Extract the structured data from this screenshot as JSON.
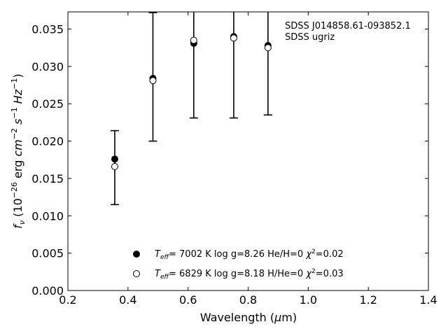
{
  "chart_data": {
    "type": "scatter",
    "title": "",
    "annotation_lines": [
      "SDSS J014858.61-093852.1",
      "SDSS ugriz"
    ],
    "xlabel": "Wavelength (μm)",
    "ylabel": "f_ν (10^-26 erg cm^-2 s^-1 Hz^-1)",
    "xlim": [
      0.2,
      1.4
    ],
    "ylim": [
      0.0,
      0.0373
    ],
    "xticks": [
      0.2,
      0.4,
      0.6,
      0.8,
      1.0,
      1.2,
      1.4
    ],
    "xtick_labels": [
      "0.2",
      "0.4",
      "0.6",
      "0.8",
      "1.0",
      "1.2",
      "1.4"
    ],
    "yticks": [
      0.0,
      0.005,
      0.01,
      0.015,
      0.02,
      0.025,
      0.03,
      0.035
    ],
    "ytick_labels": [
      "0.000",
      "0.005",
      "0.010",
      "0.015",
      "0.020",
      "0.025",
      "0.030",
      "0.035"
    ],
    "grid": false,
    "legend_position": "bottom-center",
    "observed": {
      "x": [
        0.356,
        0.483,
        0.619,
        0.752,
        0.866
      ],
      "y": [
        0.0166,
        0.0281,
        0.0335,
        0.0338,
        0.0325
      ],
      "yerr_low": [
        0.0115,
        0.02,
        0.0231,
        0.0231,
        0.0235
      ],
      "yerr_high": [
        0.0214,
        0.0372,
        0.04,
        0.04,
        0.04
      ]
    },
    "series": [
      {
        "marker": "filled",
        "x": [
          0.356,
          0.483,
          0.619,
          0.752,
          0.866
        ],
        "y": [
          0.0176,
          0.0284,
          0.0331,
          0.034,
          0.0328
        ],
        "legend": {
          "teff": "7002 K",
          "logg": "log g=8.26",
          "comp": "He/H=0",
          "chi": "=0.02"
        }
      },
      {
        "marker": "open",
        "x": [
          0.356,
          0.483,
          0.619,
          0.752,
          0.866
        ],
        "y": [
          0.0166,
          0.0281,
          0.0335,
          0.0338,
          0.0325
        ],
        "legend": {
          "teff": "6829 K",
          "logg": "log g=8.18",
          "comp": "H/He=0",
          "chi": "=0.03"
        }
      }
    ]
  }
}
